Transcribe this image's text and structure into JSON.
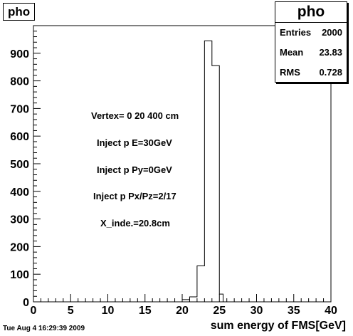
{
  "timestamp": "Tue Aug  4 16:29:39 2009",
  "stats": {
    "title": "pho",
    "rows": [
      {
        "label": "Entries",
        "value": "2000"
      },
      {
        "label": "Mean",
        "value": "23.83"
      },
      {
        "label": "RMS",
        "value": "0.728"
      }
    ]
  },
  "annotations": [
    "Vertex= 0 20 400 cm",
    "Inject p E=30GeV",
    "Inject p Py=0GeV",
    "Inject p Px/Pz=2/17",
    "X_inde.=20.8cm"
  ],
  "chart_data": {
    "type": "bar",
    "title": "pho",
    "xlabel": "sum energy of FMS[GeV]",
    "ylabel": "",
    "xlim": [
      0,
      40
    ],
    "ylim": [
      0,
      1000
    ],
    "xticks": [
      "0",
      "5",
      "10",
      "15",
      "20",
      "25",
      "30",
      "35",
      "40"
    ],
    "yticks": [
      "0",
      "100",
      "200",
      "300",
      "400",
      "500",
      "600",
      "700",
      "800",
      "900"
    ],
    "bin_edges": [
      20,
      20.5,
      21,
      21.5,
      22,
      22.5,
      23,
      23.5,
      24,
      24.5,
      25,
      25.5
    ],
    "values": [
      8,
      8,
      18,
      18,
      130,
      130,
      945,
      945,
      855,
      855,
      28
    ]
  }
}
